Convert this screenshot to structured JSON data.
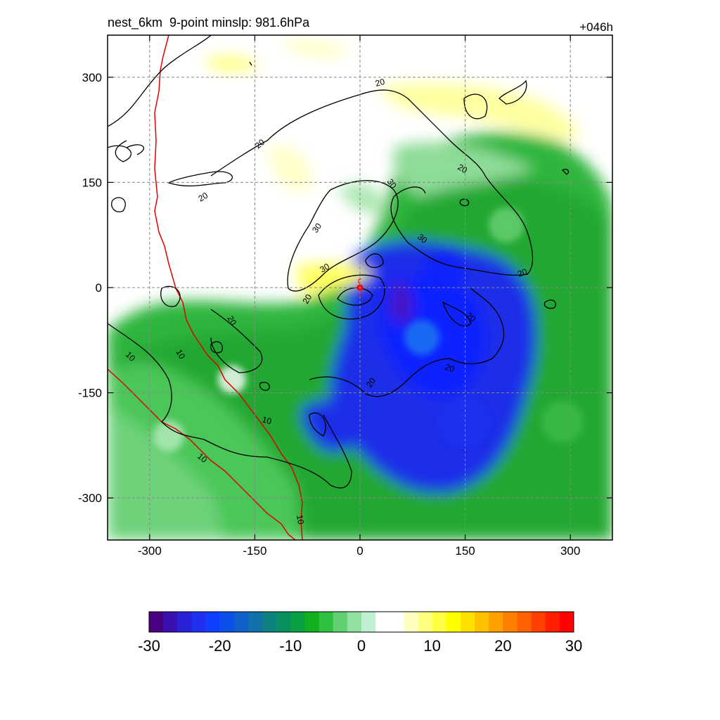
{
  "figure": {
    "title_left": "nest_6km  9-point minslp: 981.6hPa",
    "title_right": "+046h"
  },
  "chart_data": {
    "type": "heatmap",
    "description_level": "filled contour map with black line contours and a red boundary line",
    "x_ticks": [
      -300,
      -150,
      0,
      150,
      300
    ],
    "y_ticks": [
      300,
      150,
      0,
      -150,
      -300
    ],
    "xlim": [
      -360,
      360
    ],
    "ylim": [
      -360,
      360
    ],
    "grid": true,
    "colorbar": {
      "ticks": [
        -30,
        -20,
        -10,
        0,
        10,
        20,
        30
      ],
      "range": [
        -30,
        30
      ],
      "colors": [
        "#4b0082",
        "#3a10b0",
        "#2a20d8",
        "#1f30f0",
        "#1040ff",
        "#0a50e8",
        "#1060c8",
        "#1070a8",
        "#108080",
        "#0a9060",
        "#08a040",
        "#10b020",
        "#30c040",
        "#60d070",
        "#90e0a0",
        "#c0f0d0",
        "#ffffff",
        "#ffffff",
        "#ffffc0",
        "#ffff80",
        "#ffff40",
        "#ffff00",
        "#ffe000",
        "#ffc000",
        "#ffa000",
        "#ff8000",
        "#ff6000",
        "#ff4000",
        "#ff2000",
        "#ff0000"
      ]
    },
    "contour_labels": [
      "20",
      "20",
      "20",
      "20",
      "20",
      "20",
      "20",
      "20",
      "30",
      "30",
      "30",
      "30",
      "20",
      "10",
      "10",
      "10",
      "10"
    ],
    "center_marker": {
      "x": 0,
      "y": 0,
      "color": "#ff0000"
    }
  }
}
